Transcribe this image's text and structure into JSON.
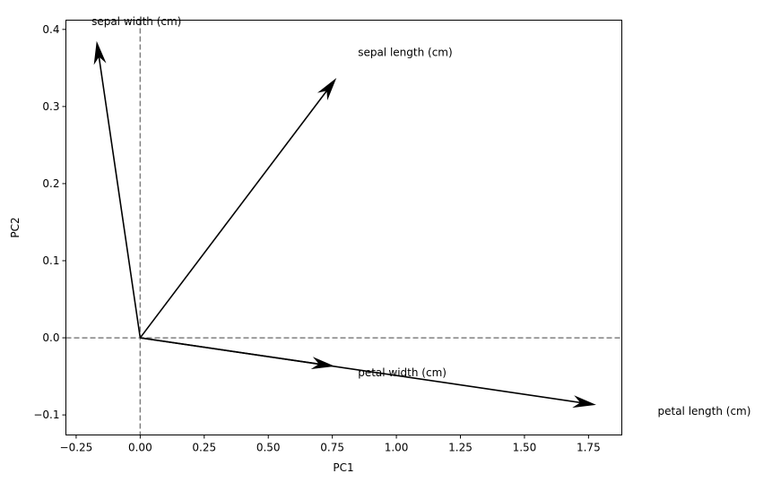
{
  "chart_data": {
    "type": "biplot-arrows",
    "title": "",
    "xlabel": "PC1",
    "ylabel": "PC2",
    "xlim": [
      -0.29,
      1.88
    ],
    "ylim": [
      -0.126,
      0.412
    ],
    "grid": false,
    "legend": null,
    "xticks": [
      -0.25,
      0.0,
      0.25,
      0.5,
      0.75,
      1.0,
      1.25,
      1.5,
      1.75
    ],
    "xtick_labels": [
      "−0.25",
      "0.00",
      "0.25",
      "0.50",
      "0.75",
      "1.00",
      "1.25",
      "1.50",
      "1.75"
    ],
    "yticks": [
      -0.1,
      0.0,
      0.1,
      0.2,
      0.3,
      0.4
    ],
    "ytick_labels": [
      "−0.1",
      "0.0",
      "0.1",
      "0.2",
      "0.3",
      "0.4"
    ],
    "reference_lines": [
      {
        "orientation": "horizontal",
        "value": 0.0,
        "style": "dashed",
        "color": "#808080"
      },
      {
        "orientation": "vertical",
        "value": 0.0,
        "style": "dashed",
        "color": "#808080"
      }
    ],
    "series": [
      {
        "name": "sepal length (cm)",
        "x": 0.766,
        "y": 0.337,
        "label_x": 0.85,
        "label_y": 0.37
      },
      {
        "name": "sepal width (cm)",
        "x": -0.17,
        "y": 0.385,
        "label_x": -0.19,
        "label_y": 0.41
      },
      {
        "name": "petal length (cm)",
        "x": 1.78,
        "y": -0.087,
        "label_x": 2.02,
        "label_y": -0.095
      },
      {
        "name": "petal width (cm)",
        "x": 0.76,
        "y": -0.037,
        "label_x": 0.85,
        "label_y": -0.045
      }
    ],
    "arrow_color": "#000000"
  }
}
